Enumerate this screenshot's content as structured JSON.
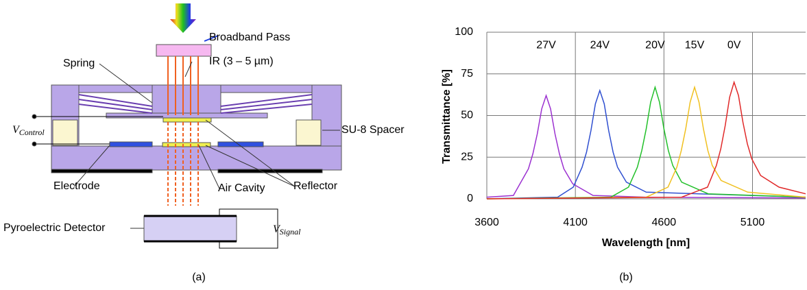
{
  "diagram": {
    "broadband_pass": "Broadband Pass",
    "ir": "IR (3 – 5 µm)",
    "spring": "Spring",
    "spacer": "SU-8 Spacer",
    "electrode": "Electrode",
    "air_cavity": "Air Cavity",
    "reflector": "Reflector",
    "detector": "Pyroelectric Detector",
    "v_control": {
      "symbol": "V",
      "subscript": "Control"
    },
    "v_signal": {
      "symbol": "V",
      "subscript": "Signal"
    }
  },
  "captions": {
    "a": "(a)",
    "b": "(b)"
  },
  "chart_data": {
    "type": "line",
    "xlabel": "Wavelength [nm]",
    "ylabel": "Transmittance [%]",
    "xlim": [
      3600,
      5400
    ],
    "ylim": [
      0,
      100
    ],
    "xticks": [
      3600,
      4100,
      4600,
      5100
    ],
    "yticks": [
      0,
      25,
      50,
      75,
      100
    ],
    "grid": true,
    "series": [
      {
        "name": "27V",
        "color": "#9b30d0",
        "x": [
          3600,
          3750,
          3835,
          3860,
          3885,
          3910,
          3935,
          3960,
          3985,
          4010,
          4035,
          4085,
          4200,
          4500,
          5400
        ],
        "values": [
          1,
          2,
          18,
          27,
          39,
          54,
          62,
          54,
          39,
          27,
          18,
          9,
          2,
          1,
          0.5
        ]
      },
      {
        "name": "24V",
        "color": "#2f4fd0",
        "x": [
          3600,
          4000,
          4088,
          4138,
          4163,
          4188,
          4213,
          4238,
          4263,
          4288,
          4313,
          4338,
          4388,
          4500,
          5400
        ],
        "values": [
          0,
          1,
          7,
          19,
          28,
          41,
          57,
          65,
          57,
          41,
          28,
          19,
          10,
          4,
          1
        ]
      },
      {
        "name": "20V",
        "color": "#22c02a",
        "x": [
          3600,
          4300,
          4400,
          4450,
          4475,
          4500,
          4525,
          4550,
          4575,
          4600,
          4625,
          4650,
          4700,
          4850,
          5400
        ],
        "values": [
          0,
          1,
          7,
          19,
          29,
          42,
          58,
          67,
          58,
          42,
          29,
          20,
          10,
          3,
          1
        ]
      },
      {
        "name": "15V",
        "color": "#f0c020",
        "x": [
          3600,
          4500,
          4623,
          4673,
          4698,
          4723,
          4748,
          4773,
          4798,
          4823,
          4848,
          4873,
          4923,
          5073,
          5400
        ],
        "values": [
          0,
          1,
          7,
          19,
          29,
          42,
          58,
          67,
          58,
          42,
          29,
          20,
          11,
          4,
          1
        ]
      },
      {
        "name": "0V",
        "color": "#e02828",
        "x": [
          3600,
          4700,
          4846,
          4896,
          4921,
          4946,
          4971,
          4996,
          5021,
          5046,
          5071,
          5096,
          5146,
          5250,
          5400
        ],
        "values": [
          0,
          1,
          7,
          20,
          30,
          44,
          61,
          70,
          62,
          46,
          33,
          24,
          14,
          7,
          3
        ]
      }
    ]
  }
}
